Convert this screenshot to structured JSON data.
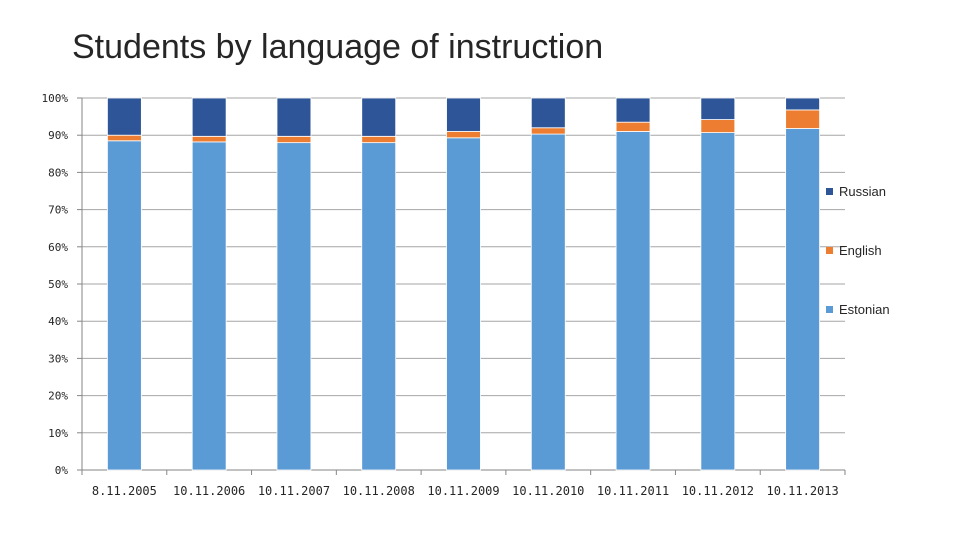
{
  "chart_data": {
    "type": "bar",
    "stacked": true,
    "percent": true,
    "title": "Students by language of instruction",
    "xlabel": "",
    "ylabel": "",
    "ylim": [
      0,
      100
    ],
    "yticks": [
      "0%",
      "10%",
      "20%",
      "30%",
      "40%",
      "50%",
      "60%",
      "70%",
      "80%",
      "90%",
      "100%"
    ],
    "grid": true,
    "legend_position": "right",
    "categories": [
      "8.11.2005",
      "10.11.2006",
      "10.11.2007",
      "10.11.2008",
      "10.11.2009",
      "10.11.2010",
      "10.11.2011",
      "10.11.2012",
      "10.11.2013"
    ],
    "series": [
      {
        "name": "Estonian",
        "color": "#5b9bd5",
        "values": [
          88.5,
          88.2,
          88.0,
          88.0,
          89.3,
          90.3,
          91.0,
          90.7,
          91.8
        ]
      },
      {
        "name": "English",
        "color": "#ed7d31",
        "values": [
          1.5,
          1.5,
          1.7,
          1.7,
          1.7,
          1.7,
          2.5,
          3.5,
          5.0
        ]
      },
      {
        "name": "Russian",
        "color": "#2e5597",
        "values": [
          10.0,
          10.3,
          10.3,
          10.3,
          9.0,
          8.0,
          6.5,
          5.8,
          3.2
        ]
      }
    ],
    "legend_order": [
      "Russian",
      "English",
      "Estonian"
    ]
  }
}
